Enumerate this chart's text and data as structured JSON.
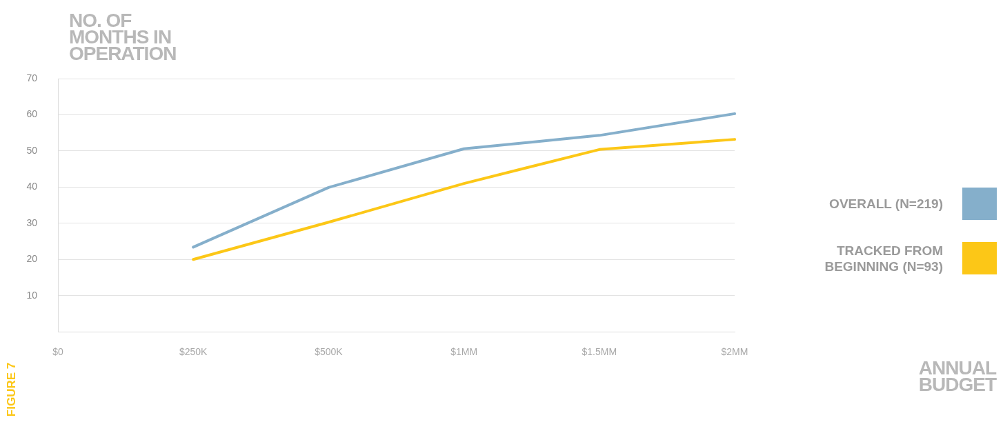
{
  "chart_data": {
    "type": "line",
    "ylabel": "NO. OF MONTHS IN OPERATION",
    "annotations": [
      "FIGURE 7",
      "ANNUAL BUDGET"
    ],
    "categories": [
      "$0",
      "$250K",
      "$500K",
      "$1MM",
      "$1.5MM",
      "$2MM"
    ],
    "series": [
      {
        "name": "OVERALL (N=219)",
        "color": "#85afcb",
        "values": [
          null,
          23.4,
          39.9,
          50.6,
          54.3,
          60.3
        ]
      },
      {
        "name": "TRACKED FROM BEGINNING (N=93)",
        "color": "#fcc717",
        "values": [
          null,
          20.0,
          30.3,
          41.0,
          50.4,
          53.2
        ]
      }
    ],
    "ylim": [
      0,
      70
    ],
    "yticks": [
      10,
      20,
      30,
      40,
      50,
      60,
      70
    ],
    "grid": "y",
    "legend": "right",
    "marker": "none",
    "line_style": "solid"
  }
}
